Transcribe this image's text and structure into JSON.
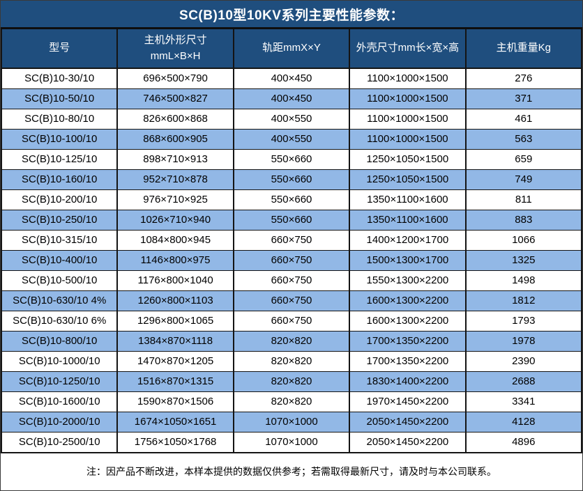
{
  "title": "SC(B)10型10KV系列主要性能参数：",
  "table": {
    "columns": [
      "型号",
      "主机外形尺寸\nmmL×B×H",
      "轨距mmX×Y",
      "外壳尺寸mm长×宽×高",
      "主机重量Kg"
    ],
    "rows": [
      [
        "SC(B)10-30/10",
        "696×500×790",
        "400×450",
        "1100×1000×1500",
        276
      ],
      [
        "SC(B)10-50/10",
        "746×500×827",
        "400×450",
        "1100×1000×1500",
        371
      ],
      [
        "SC(B)10-80/10",
        "826×600×868",
        "400×550",
        "1100×1000×1500",
        461
      ],
      [
        "SC(B)10-100/10",
        "868×600×905",
        "400×550",
        "1100×1000×1500",
        563
      ],
      [
        "SC(B)10-125/10",
        "898×710×913",
        "550×660",
        "1250×1050×1500",
        659
      ],
      [
        "SC(B)10-160/10",
        "952×710×878",
        "550×660",
        "1250×1050×1500",
        749
      ],
      [
        "SC(B)10-200/10",
        "976×710×925",
        "550×660",
        "1350×1100×1600",
        811
      ],
      [
        "SC(B)10-250/10",
        "1026×710×940",
        "550×660",
        "1350×1100×1600",
        883
      ],
      [
        "SC(B)10-315/10",
        "1084×800×945",
        "660×750",
        "1400×1200×1700",
        1066
      ],
      [
        "SC(B)10-400/10",
        "1146×800×975",
        "660×750",
        "1500×1300×1700",
        1325
      ],
      [
        "SC(B)10-500/10",
        "1176×800×1040",
        "660×750",
        "1550×1300×2200",
        1498
      ],
      [
        "SC(B)10-630/10 4%",
        "1260×800×1103",
        "660×750",
        "1600×1300×2200",
        1812
      ],
      [
        "SC(B)10-630/10 6%",
        "1296×800×1065",
        "660×750",
        "1600×1300×2200",
        1793
      ],
      [
        "SC(B)10-800/10",
        "1384×870×1118",
        "820×820",
        "1700×1350×2200",
        1978
      ],
      [
        "SC(B)10-1000/10",
        "1470×870×1205",
        "820×820",
        "1700×1350×2200",
        2390
      ],
      [
        "SC(B)10-1250/10",
        "1516×870×1315",
        "820×820",
        "1830×1400×2200",
        2688
      ],
      [
        "SC(B)10-1600/10",
        "1590×870×1506",
        "820×820",
        "1970×1450×2200",
        3341
      ],
      [
        "SC(B)10-2000/10",
        "1674×1050×1651",
        "1070×1000",
        "2050×1450×2200",
        4128
      ],
      [
        "SC(B)10-2500/10",
        "1756×1050×1768",
        "1070×1000",
        "2050×1450×2200",
        4896
      ]
    ]
  },
  "footer_note": "注：因产品不断改进，本样本提供的数据仅供参考；若需取得最新尺寸，请及时与本公司联系。",
  "colors": {
    "header_bg": "#1F4E7E",
    "alt_row_bg": "#92B8E6",
    "border": "#141414",
    "header_text": "#FFFFFF",
    "body_text": "#000000"
  }
}
